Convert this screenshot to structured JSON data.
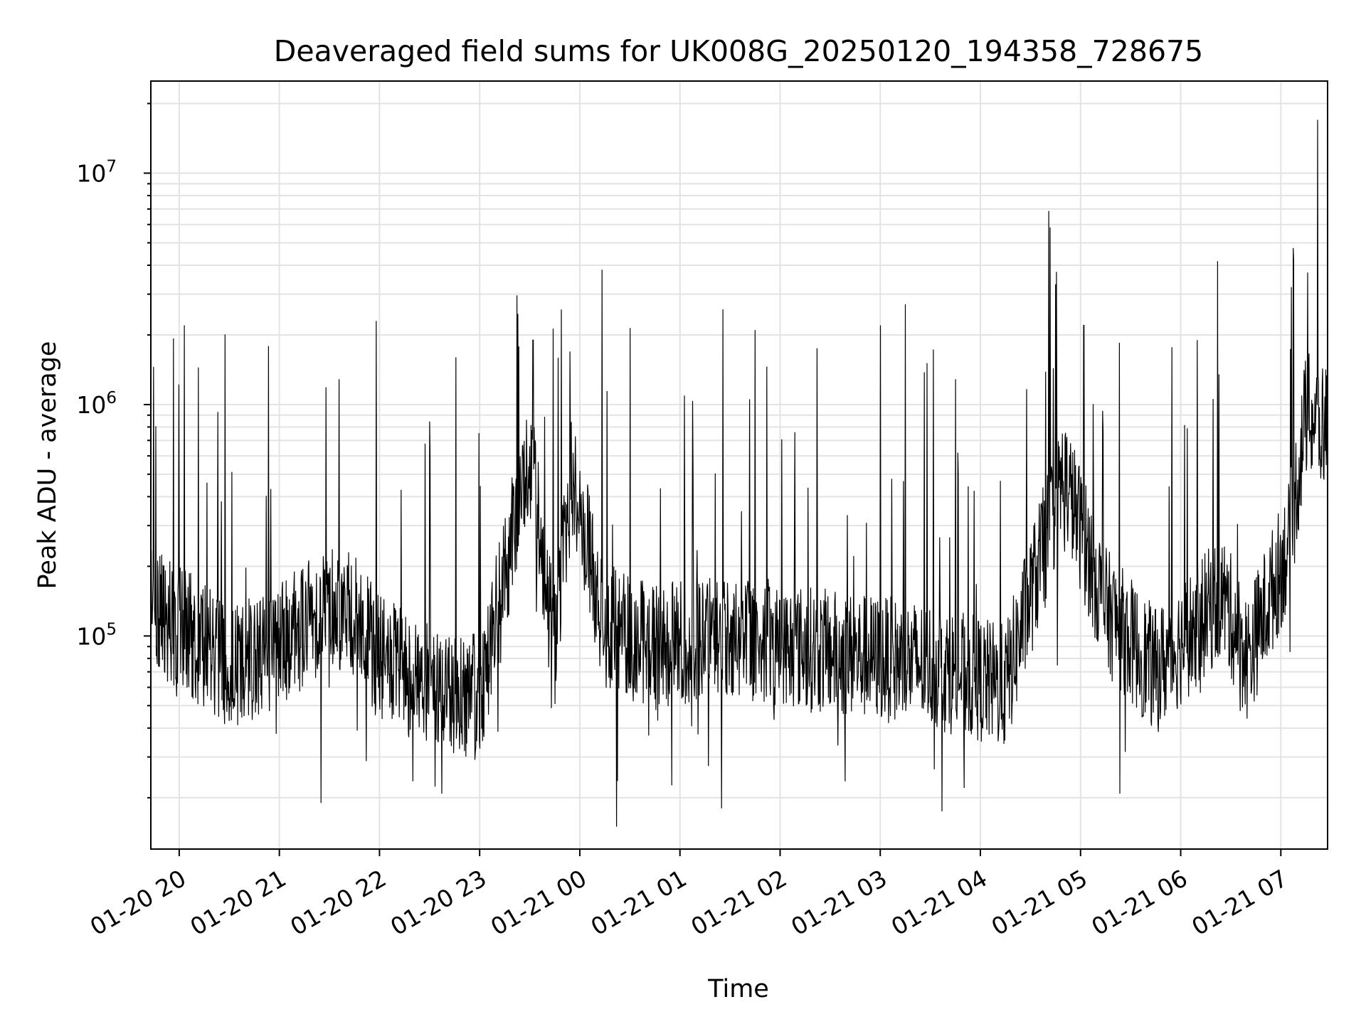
{
  "chart_data": {
    "type": "line",
    "title": "Deaveraged field sums for UK008G_20250120_194358_728675",
    "xlabel": "Time",
    "ylabel": "Peak ADU - average",
    "yscale": "log",
    "xlim": [
      "2025-01-20 19:43",
      "2025-01-21 07:28"
    ],
    "ylim": [
      12000,
      25000000
    ],
    "grid": true,
    "xtick_labels": [
      "01-20 20",
      "01-20 21",
      "01-20 22",
      "01-20 23",
      "01-21 00",
      "01-21 01",
      "01-21 02",
      "01-21 03",
      "01-21 04",
      "01-21 05",
      "01-21 06",
      "01-21 07"
    ],
    "ytick_labels": [
      {
        "base": "10",
        "exp": "5"
      },
      {
        "base": "10",
        "exp": "6"
      },
      {
        "base": "10",
        "exp": "7"
      }
    ],
    "series": [
      {
        "color": "#000000",
        "x_start": "2025-01-20 19:43",
        "x_end": "2025-01-21 07:28",
        "description_values": [
          {
            "t": "2025-01-20 19:43",
            "y": 130000
          },
          {
            "t": "2025-01-20 20:00",
            "y": 110000
          },
          {
            "t": "2025-01-20 20:30",
            "y": 75000
          },
          {
            "t": "2025-01-20 21:00",
            "y": 90000
          },
          {
            "t": "2025-01-20 21:30",
            "y": 140000
          },
          {
            "t": "2025-01-20 21:45",
            "y": 120000
          },
          {
            "t": "2025-01-20 22:00",
            "y": 80000
          },
          {
            "t": "2025-01-20 22:30",
            "y": 60000
          },
          {
            "t": "2025-01-20 23:00",
            "y": 55000
          },
          {
            "t": "2025-01-20 23:30",
            "y": 600000
          },
          {
            "t": "2025-01-20 23:45",
            "y": 90000
          },
          {
            "t": "2025-01-20 23:55",
            "y": 500000
          },
          {
            "t": "2025-01-21 00:15",
            "y": 110000
          },
          {
            "t": "2025-01-21 00:45",
            "y": 90000
          },
          {
            "t": "2025-01-21 01:30",
            "y": 100000
          },
          {
            "t": "2025-01-21 02:30",
            "y": 85000
          },
          {
            "t": "2025-01-21 03:30",
            "y": 75000
          },
          {
            "t": "2025-01-21 04:15",
            "y": 60000
          },
          {
            "t": "2025-01-21 04:50",
            "y": 500000
          },
          {
            "t": "2025-01-21 05:15",
            "y": 130000
          },
          {
            "t": "2025-01-21 05:45",
            "y": 70000
          },
          {
            "t": "2025-01-21 06:25",
            "y": 150000
          },
          {
            "t": "2025-01-21 06:40",
            "y": 80000
          },
          {
            "t": "2025-01-21 07:05",
            "y": 250000
          },
          {
            "t": "2025-01-21 07:15",
            "y": 900000
          },
          {
            "t": "2025-01-21 07:28",
            "y": 800000
          }
        ],
        "notable_spikes": [
          {
            "t": "2025-01-20 20:03",
            "y": 2200000
          },
          {
            "t": "2025-01-20 23:32",
            "y": 1900000
          },
          {
            "t": "2025-01-21 01:45",
            "y": 2100000
          },
          {
            "t": "2025-01-21 03:00",
            "y": 2200000
          },
          {
            "t": "2025-01-21 05:02",
            "y": 2200000
          },
          {
            "t": "2025-01-21 06:10",
            "y": 1900000
          },
          {
            "t": "2025-01-21 07:22",
            "y": 17000000
          }
        ],
        "notable_dips": [
          {
            "t": "2025-01-21 00:22",
            "y": 15000
          },
          {
            "t": "2025-01-21 01:25",
            "y": 18000
          },
          {
            "t": "2025-01-20 21:25",
            "y": 19000
          }
        ]
      }
    ]
  }
}
